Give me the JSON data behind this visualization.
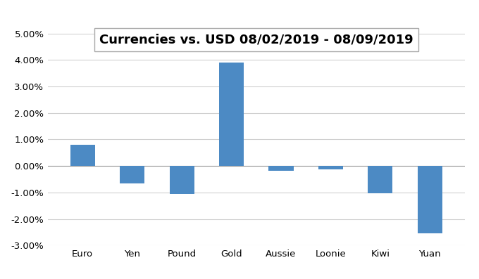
{
  "title": "Currencies vs. USD 08/02/2019 - 08/09/2019",
  "categories": [
    "Euro",
    "Yen",
    "Pound",
    "Gold",
    "Aussie",
    "Loonie",
    "Kiwi",
    "Yuan"
  ],
  "values": [
    0.008,
    -0.0065,
    -0.0105,
    0.039,
    -0.0017,
    -0.0012,
    -0.0102,
    -0.0255
  ],
  "bar_color": "#4C8AC4",
  "ylim": [
    -0.03,
    0.05
  ],
  "yticks": [
    -0.03,
    -0.02,
    -0.01,
    0.0,
    0.01,
    0.02,
    0.03,
    0.04,
    0.05
  ],
  "background_color": "#FFFFFF",
  "grid_color": "#D0D0D0",
  "title_fontsize": 13,
  "tick_fontsize": 9.5,
  "title_box_facecolor": "#FFFFFF",
  "title_box_edgecolor": "#AAAAAA"
}
